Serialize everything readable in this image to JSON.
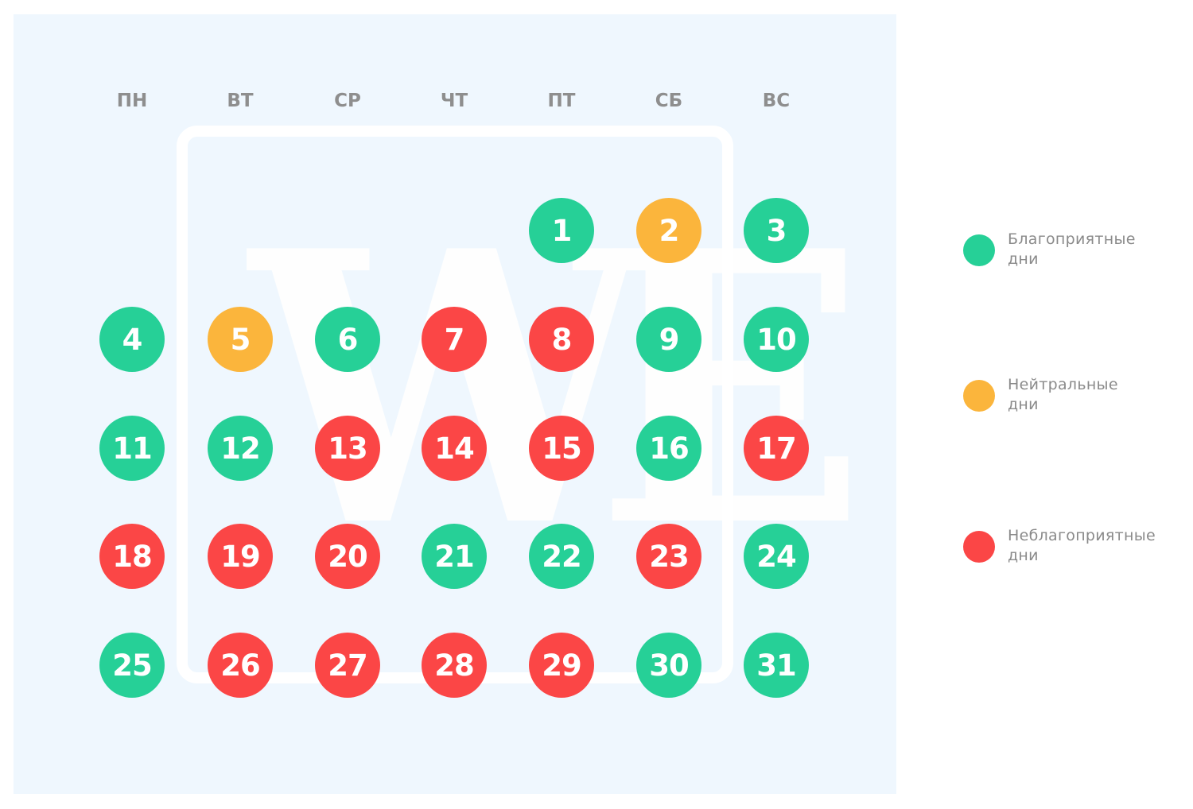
{
  "colors": {
    "favorable": "#26d097",
    "neutral": "#fbb53c",
    "unfavorable": "#fb4646"
  },
  "watermark": {
    "text": "WE"
  },
  "weekdays": [
    "ПН",
    "ВТ",
    "СР",
    "ЧТ",
    "ПТ",
    "СБ",
    "ВС"
  ],
  "calendar": {
    "start_weekday_index": 4,
    "days": [
      {
        "day": "1",
        "status": "favorable"
      },
      {
        "day": "2",
        "status": "neutral"
      },
      {
        "day": "3",
        "status": "favorable"
      },
      {
        "day": "4",
        "status": "favorable"
      },
      {
        "day": "5",
        "status": "neutral"
      },
      {
        "day": "6",
        "status": "favorable"
      },
      {
        "day": "7",
        "status": "unfavorable"
      },
      {
        "day": "8",
        "status": "unfavorable"
      },
      {
        "day": "9",
        "status": "favorable"
      },
      {
        "day": "10",
        "status": "favorable"
      },
      {
        "day": "11",
        "status": "favorable"
      },
      {
        "day": "12",
        "status": "favorable"
      },
      {
        "day": "13",
        "status": "unfavorable"
      },
      {
        "day": "14",
        "status": "unfavorable"
      },
      {
        "day": "15",
        "status": "unfavorable"
      },
      {
        "day": "16",
        "status": "favorable"
      },
      {
        "day": "17",
        "status": "unfavorable"
      },
      {
        "day": "18",
        "status": "unfavorable"
      },
      {
        "day": "19",
        "status": "unfavorable"
      },
      {
        "day": "20",
        "status": "unfavorable"
      },
      {
        "day": "21",
        "status": "favorable"
      },
      {
        "day": "22",
        "status": "favorable"
      },
      {
        "day": "23",
        "status": "unfavorable"
      },
      {
        "day": "24",
        "status": "favorable"
      },
      {
        "day": "25",
        "status": "favorable"
      },
      {
        "day": "26",
        "status": "unfavorable"
      },
      {
        "day": "27",
        "status": "unfavorable"
      },
      {
        "day": "28",
        "status": "unfavorable"
      },
      {
        "day": "29",
        "status": "unfavorable"
      },
      {
        "day": "30",
        "status": "favorable"
      },
      {
        "day": "31",
        "status": "favorable"
      }
    ]
  },
  "legend": {
    "favorable": {
      "line1": "Благоприятные",
      "line2": "дни"
    },
    "neutral": {
      "line1": "Нейтральные",
      "line2": "дни"
    },
    "unfavorable": {
      "line1": "Неблагоприятные",
      "line2": "дни"
    }
  }
}
